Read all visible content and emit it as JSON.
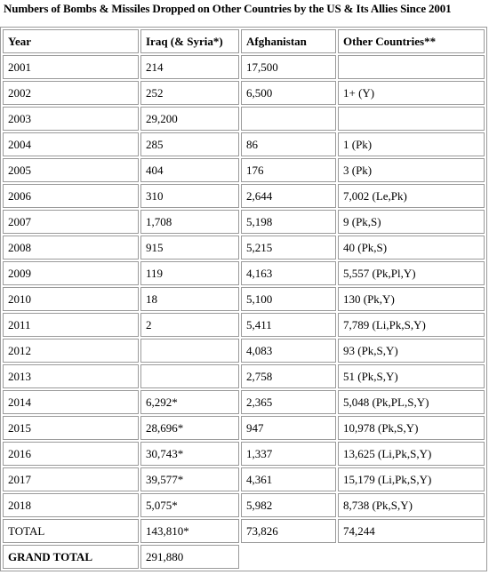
{
  "title": "Numbers of Bombs & Missiles Dropped on Other Countries by the US & Its Allies Since 2001",
  "table": {
    "headers": [
      "Year",
      "Iraq (& Syria*)",
      "Afghanistan",
      "Other Countries**"
    ],
    "rows": [
      [
        "2001",
        "214",
        "17,500",
        ""
      ],
      [
        "2002",
        "252",
        "6,500",
        "1+ (Y)"
      ],
      [
        "2003",
        "29,200",
        "",
        ""
      ],
      [
        "2004",
        "285",
        "86",
        "1 (Pk)"
      ],
      [
        "2005",
        "404",
        "176",
        "3 (Pk)"
      ],
      [
        "2006",
        "310",
        "2,644",
        "7,002 (Le,Pk)"
      ],
      [
        "2007",
        "1,708",
        "5,198",
        "9 (Pk,S)"
      ],
      [
        "2008",
        "915",
        "5,215",
        "40 (Pk,S)"
      ],
      [
        "2009",
        "119",
        "4,163",
        "5,557 (Pk,Pl,Y)"
      ],
      [
        "2010",
        "18",
        "5,100",
        "130 (Pk,Y)"
      ],
      [
        "2011",
        "2",
        "5,411",
        "7,789 (Li,Pk,S,Y)"
      ],
      [
        "2012",
        "",
        "4,083",
        "93 (Pk,S,Y)"
      ],
      [
        "2013",
        "",
        "2,758",
        "51 (Pk,S,Y)"
      ],
      [
        "2014",
        "6,292*",
        "2,365",
        "5,048 (Pk,PL,S,Y)"
      ],
      [
        "2015",
        "28,696*",
        "947",
        "10,978 (Pk,S,Y)"
      ],
      [
        "2016",
        "30,743*",
        "1,337",
        "13,625 (Li,Pk,S,Y)"
      ],
      [
        "2017",
        "39,577*",
        "4,361",
        "15,179 (Li,Pk,S,Y)"
      ],
      [
        "2018",
        "5,075*",
        "5,982",
        "8,738 (Pk,S,Y)"
      ],
      [
        "TOTAL",
        "143,810*",
        "73,826",
        "74,244"
      ]
    ],
    "grand_total": {
      "label": "GRAND TOTAL",
      "value": "291,880"
    }
  },
  "colors": {
    "border": "#9a9a9a",
    "text": "#000000",
    "background": "#ffffff"
  }
}
